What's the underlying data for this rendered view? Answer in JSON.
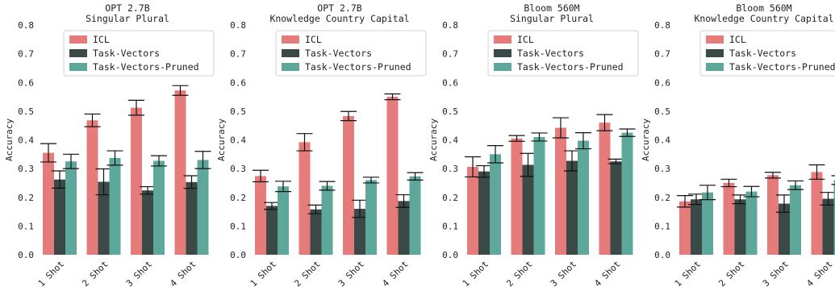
{
  "colors": {
    "icl": "#e57b7b",
    "task_vectors": "#3c4a47",
    "task_vectors_pruned": "#5ea89b",
    "error_bar": "#111111"
  },
  "chart_data": [
    {
      "type": "bar",
      "title": "OPT 2.7B\nSingular Plural",
      "ylabel": "Accuracy",
      "ylim": [
        0,
        0.8
      ],
      "yticks": [
        "0.0",
        "0.1",
        "0.2",
        "0.3",
        "0.4",
        "0.5",
        "0.6",
        "0.7",
        "0.8"
      ],
      "categories": [
        "1 Shot",
        "2 Shot",
        "3 Shot",
        "4 Shot"
      ],
      "legend": "top-right",
      "series": [
        {
          "name": "ICL",
          "values": [
            0.355,
            0.468,
            0.512,
            0.572
          ],
          "errors": [
            0.032,
            0.022,
            0.026,
            0.017
          ]
        },
        {
          "name": "Task-Vectors",
          "values": [
            0.262,
            0.254,
            0.224,
            0.253
          ],
          "errors": [
            0.03,
            0.045,
            0.013,
            0.022
          ]
        },
        {
          "name": "Task-Vectors-Pruned",
          "values": [
            0.325,
            0.337,
            0.327,
            0.33
          ],
          "errors": [
            0.025,
            0.025,
            0.018,
            0.03
          ]
        }
      ]
    },
    {
      "type": "bar",
      "title": "OPT 2.7B\nKnowledge Country Capital",
      "ylabel": "Accuracy",
      "ylim": [
        0,
        0.8
      ],
      "yticks": [
        "0.0",
        "0.1",
        "0.2",
        "0.3",
        "0.4",
        "0.5",
        "0.6",
        "0.7",
        "0.8"
      ],
      "categories": [
        "1 Shot",
        "2 Shot",
        "3 Shot",
        "4 Shot"
      ],
      "legend": "top-right",
      "series": [
        {
          "name": "ICL",
          "values": [
            0.274,
            0.392,
            0.483,
            0.55
          ],
          "errors": [
            0.02,
            0.03,
            0.016,
            0.01
          ]
        },
        {
          "name": "Task-Vectors",
          "values": [
            0.17,
            0.158,
            0.16,
            0.187
          ],
          "errors": [
            0.012,
            0.015,
            0.03,
            0.022
          ]
        },
        {
          "name": "Task-Vectors-Pruned",
          "values": [
            0.238,
            0.24,
            0.26,
            0.273
          ],
          "errors": [
            0.018,
            0.015,
            0.01,
            0.013
          ]
        }
      ]
    },
    {
      "type": "bar",
      "title": "Bloom 560M\nSingular Plural",
      "ylabel": "Accuracy",
      "ylim": [
        0,
        0.8
      ],
      "yticks": [
        "0.0",
        "0.1",
        "0.2",
        "0.3",
        "0.4",
        "0.5",
        "0.6",
        "0.7",
        "0.8"
      ],
      "categories": [
        "1 Shot",
        "2 Shot",
        "3 Shot",
        "4 Shot"
      ],
      "legend": "top-right",
      "series": [
        {
          "name": "ICL",
          "values": [
            0.306,
            0.405,
            0.442,
            0.46
          ],
          "errors": [
            0.035,
            0.01,
            0.035,
            0.028
          ]
        },
        {
          "name": "Task-Vectors",
          "values": [
            0.29,
            0.313,
            0.327,
            0.325
          ],
          "errors": [
            0.02,
            0.04,
            0.035,
            0.008
          ]
        },
        {
          "name": "Task-Vectors-Pruned",
          "values": [
            0.35,
            0.41,
            0.397,
            0.425
          ],
          "errors": [
            0.03,
            0.014,
            0.028,
            0.013
          ]
        }
      ]
    },
    {
      "type": "bar",
      "title": "Bloom 560M\nKnowledge Country Capital",
      "ylabel": "Accuracy",
      "ylim": [
        0,
        0.8
      ],
      "yticks": [
        "0.0",
        "0.1",
        "0.2",
        "0.3",
        "0.4",
        "0.5",
        "0.6",
        "0.7",
        "0.8"
      ],
      "categories": [
        "1 Shot",
        "2 Shot",
        "3 Shot",
        "4 Shot"
      ],
      "legend": "top-right",
      "series": [
        {
          "name": "ICL",
          "values": [
            0.186,
            0.25,
            0.277,
            0.288
          ],
          "errors": [
            0.02,
            0.013,
            0.01,
            0.025
          ]
        },
        {
          "name": "Task-Vectors",
          "values": [
            0.193,
            0.193,
            0.178,
            0.195
          ],
          "errors": [
            0.018,
            0.015,
            0.03,
            0.022
          ]
        },
        {
          "name": "Task-Vectors-Pruned",
          "values": [
            0.217,
            0.22,
            0.242,
            0.26
          ],
          "errors": [
            0.025,
            0.018,
            0.015,
            0.015
          ]
        }
      ]
    }
  ]
}
